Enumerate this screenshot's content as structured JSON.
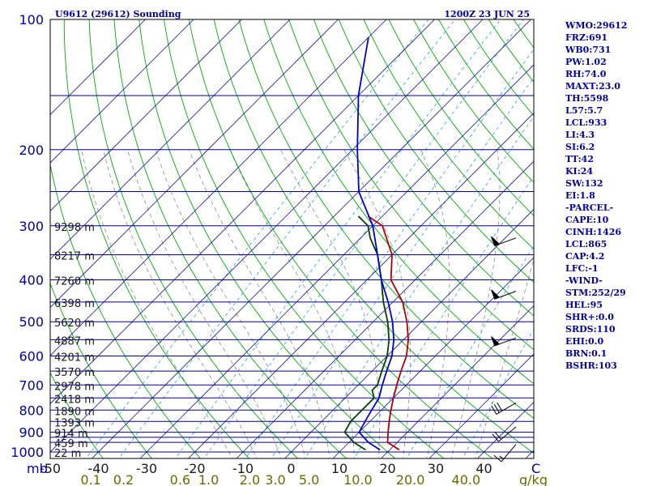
{
  "header": {
    "title": "U9612 (29612) Sounding",
    "datetime": "1200Z 23 JUN 25"
  },
  "indices": [
    "WMO:29612",
    "FRZ:691",
    "WB0:731",
    "PW:1.02",
    "RH:74.0",
    "MAXT:23.0",
    "TH:5598",
    "L57:5.7",
    "LCL:933",
    "LI:4.3",
    "SI:6.2",
    "TT:42",
    "KI:24",
    "SW:132",
    "EI:1.8",
    "-PARCEL-",
    "CAPE:10",
    "CINH:1426",
    "LCL:865",
    "CAP:4.2",
    "LFC:-1",
    "-WIND-",
    "STM:252/29",
    "HEL:95",
    "SHR+:0.0",
    "SRDS:110",
    "EHI:0.0",
    "BRN:0.1",
    "BSHR:103"
  ],
  "colors": {
    "isobar": "#00008b",
    "isotherm": "#1a1aa0",
    "dry_adiabat": "#00aa00",
    "moist_adiabat": "#7a7a7a",
    "mixing_ratio": "#2aa0d0",
    "temperature": "#aa0000",
    "dewpoint": "#004000",
    "wetbulb": "#0000cc",
    "frame": "#000000",
    "pressure_label": "#0000aa",
    "temp_label": "#1a1a1a",
    "mix_label": "#6a6a00"
  },
  "chart_data": {
    "type": "line",
    "title": "U9612 (29612) Sounding",
    "xlabel": "C",
    "ylabel": "mb",
    "pressure_axis": {
      "scale": "log",
      "range_mb": [
        1000,
        100
      ],
      "ticks": [
        100,
        200,
        300,
        400,
        500,
        600,
        700,
        800,
        900,
        1000
      ]
    },
    "temperature_axis": {
      "range_c": [
        -50,
        50
      ],
      "ticks": [
        -50,
        -40,
        -30,
        -20,
        -10,
        0,
        10,
        20,
        30,
        40
      ],
      "tick_labels": [
        "-50",
        "-40",
        "-30",
        "-20",
        "-10",
        "0",
        "10",
        "20",
        "30",
        "40"
      ]
    },
    "mixing_ratio_ticks": [
      "0.1",
      "0.2",
      "0.6",
      "1.0",
      "2.0",
      "3.0",
      "5.0",
      "10.0",
      "20.0",
      "40.0"
    ],
    "mixing_ratio_unit": "g/kg",
    "height_labels": [
      {
        "p": 300,
        "label": "9298 m"
      },
      {
        "p": 350,
        "label": "8217 m"
      },
      {
        "p": 400,
        "label": "7260 m"
      },
      {
        "p": 450,
        "label": "6398 m"
      },
      {
        "p": 500,
        "label": "5620 m"
      },
      {
        "p": 550,
        "label": "4887 m"
      },
      {
        "p": 600,
        "label": "4201 m"
      },
      {
        "p": 650,
        "label": "3570 m"
      },
      {
        "p": 700,
        "label": "2978 m"
      },
      {
        "p": 750,
        "label": "2418 m"
      },
      {
        "p": 800,
        "label": "1890 m"
      },
      {
        "p": 850,
        "label": "1393 m"
      },
      {
        "p": 900,
        "label": "914 m"
      },
      {
        "p": 950,
        "label": "459 m"
      },
      {
        "p": 1000,
        "label": "22 m"
      }
    ],
    "series": [
      {
        "key": "temperature",
        "points": [
          [
            989,
            22
          ],
          [
            950,
            18
          ],
          [
            900,
            16
          ],
          [
            850,
            14
          ],
          [
            800,
            12
          ],
          [
            750,
            10
          ],
          [
            700,
            8
          ],
          [
            650,
            6
          ],
          [
            600,
            4
          ],
          [
            550,
            1
          ],
          [
            500,
            -3
          ],
          [
            450,
            -8
          ],
          [
            400,
            -15
          ],
          [
            350,
            -20
          ],
          [
            300,
            -28
          ],
          [
            285,
            -33
          ]
        ]
      },
      {
        "key": "dewpoint",
        "points": [
          [
            989,
            15
          ],
          [
            950,
            11
          ],
          [
            900,
            7
          ],
          [
            850,
            6
          ],
          [
            800,
            6
          ],
          [
            750,
            6
          ],
          [
            720,
            4
          ],
          [
            700,
            4
          ],
          [
            650,
            2
          ],
          [
            600,
            0
          ],
          [
            550,
            -3
          ],
          [
            500,
            -7
          ],
          [
            450,
            -12
          ],
          [
            400,
            -17
          ],
          [
            350,
            -23
          ],
          [
            320,
            -28
          ],
          [
            300,
            -31
          ],
          [
            285,
            -35
          ]
        ]
      },
      {
        "key": "wetbulb",
        "points": [
          [
            989,
            18
          ],
          [
            950,
            14
          ],
          [
            900,
            10
          ],
          [
            850,
            9
          ],
          [
            800,
            8
          ],
          [
            750,
            7
          ],
          [
            700,
            5
          ],
          [
            650,
            3
          ],
          [
            600,
            1
          ],
          [
            550,
            -2
          ],
          [
            500,
            -6
          ],
          [
            450,
            -11
          ],
          [
            400,
            -17
          ],
          [
            350,
            -23
          ],
          [
            300,
            -30
          ],
          [
            250,
            -40
          ],
          [
            200,
            -49
          ],
          [
            150,
            -60
          ],
          [
            110,
            -70
          ]
        ]
      }
    ],
    "wind_barbs": [
      {
        "p": 320,
        "dir": 250,
        "spd": 50
      },
      {
        "p": 425,
        "dir": 250,
        "spd": 50
      },
      {
        "p": 545,
        "dir": 250,
        "spd": 50
      },
      {
        "p": 770,
        "dir": 240,
        "spd": 30
      },
      {
        "p": 875,
        "dir": 230,
        "spd": 20
      },
      {
        "p": 960,
        "dir": 220,
        "spd": 15
      }
    ]
  }
}
